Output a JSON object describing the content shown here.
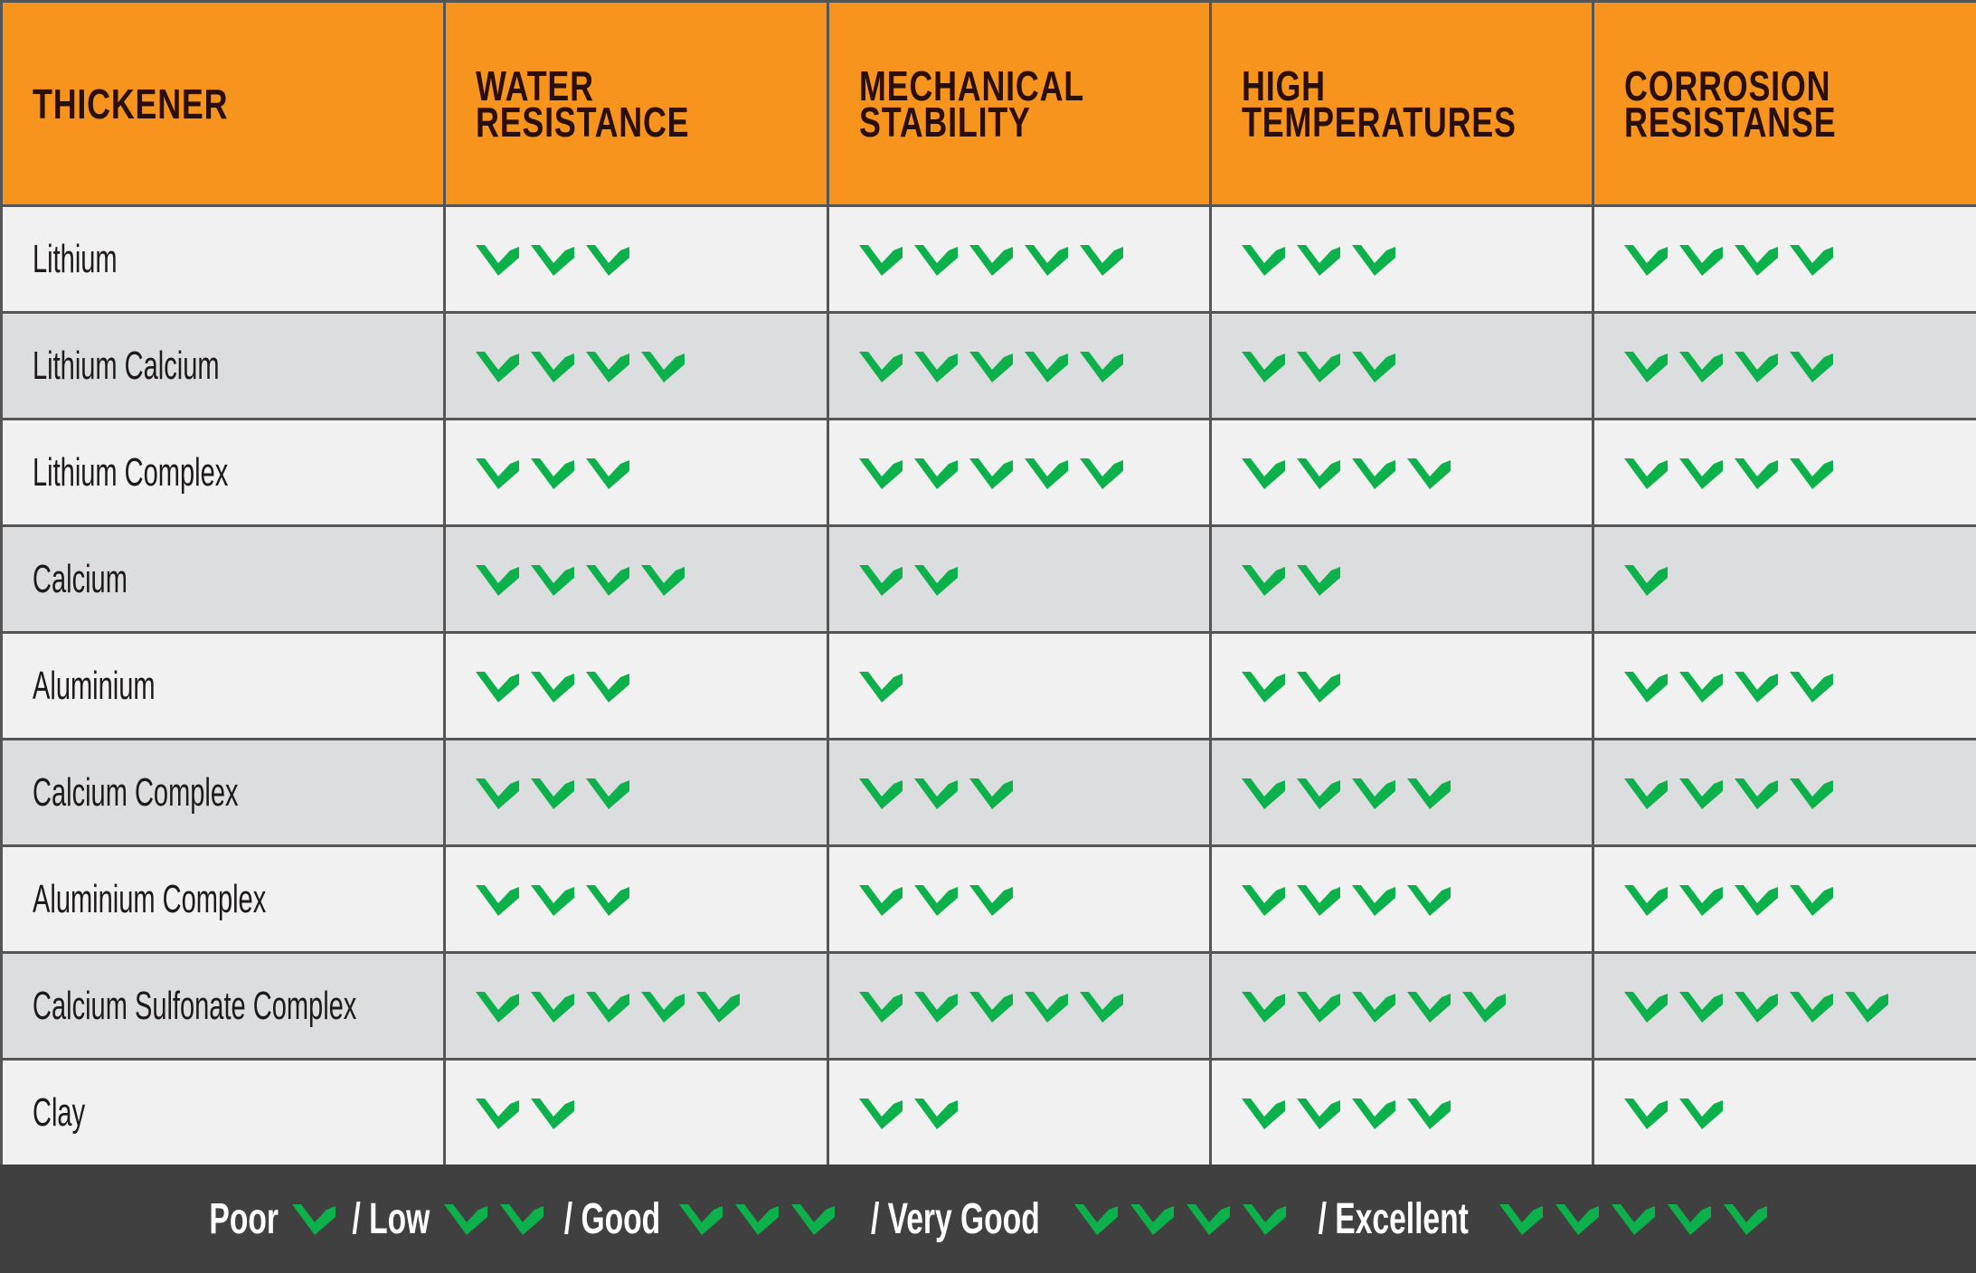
{
  "headers": [
    "THICKENER",
    "WATER\nRESISTANCE",
    "MECHANICAL\nSTABILITY",
    "HIGH\nTEMPERATURES",
    "CORROSION\nRESISTANSE"
  ],
  "rows": [
    {
      "name": "Lithium",
      "ratings": [
        3,
        5,
        3,
        4
      ]
    },
    {
      "name": "Lithium Calcium",
      "ratings": [
        4,
        5,
        3,
        4
      ]
    },
    {
      "name": "Lithium Complex",
      "ratings": [
        3,
        5,
        4,
        4
      ]
    },
    {
      "name": "Calcium",
      "ratings": [
        4,
        2,
        2,
        1
      ]
    },
    {
      "name": "Aluminium",
      "ratings": [
        3,
        1,
        2,
        4
      ]
    },
    {
      "name": "Calcium Complex",
      "ratings": [
        3,
        3,
        4,
        4
      ]
    },
    {
      "name": "Aluminium Complex",
      "ratings": [
        3,
        3,
        4,
        4
      ]
    },
    {
      "name": "Calcium Sulfonate Complex",
      "ratings": [
        5,
        5,
        5,
        5
      ]
    },
    {
      "name": "Clay",
      "ratings": [
        2,
        2,
        4,
        2
      ]
    }
  ],
  "legend": [
    {
      "label": "Poor",
      "count": 1
    },
    {
      "label": "/ Low",
      "count": 2
    },
    {
      "label": "/ Good",
      "count": 3
    },
    {
      "label": "/ Very Good",
      "count": 4
    },
    {
      "label": "/ Excellent",
      "count": 5
    }
  ],
  "colors": {
    "header": "#f7941e",
    "check": "#0db14b",
    "footer": "#404040"
  },
  "icon": "checkmark-icon"
}
